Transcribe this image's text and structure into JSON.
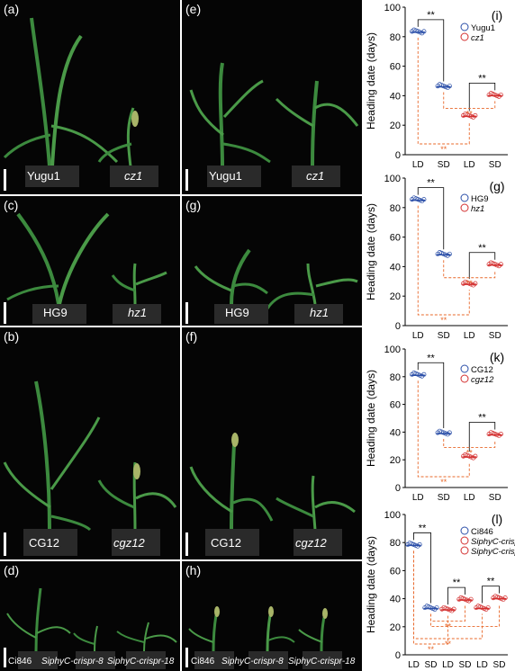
{
  "colors": {
    "wildtype": "#2b4fa8",
    "mutant": "#d32f2f",
    "significance": "#e8682a",
    "photo_bg": "#050505",
    "leaf": "#3c8a3e",
    "pot": "#2a2a2a"
  },
  "photos": [
    {
      "id": "a",
      "label": "(a)",
      "captions": [
        {
          "text": "Yugu1",
          "italic": false
        },
        {
          "text": "cz1",
          "italic": true
        }
      ]
    },
    {
      "id": "e",
      "label": "(e)",
      "captions": [
        {
          "text": "Yugu1",
          "italic": false
        },
        {
          "text": "cz1",
          "italic": true
        }
      ]
    },
    {
      "id": "c",
      "label": "(c)",
      "captions": [
        {
          "text": "HG9",
          "italic": false
        },
        {
          "text": "hz1",
          "italic": true
        }
      ]
    },
    {
      "id": "g",
      "label": "(g)",
      "captions": [
        {
          "text": "HG9",
          "italic": false
        },
        {
          "text": "hz1",
          "italic": true
        }
      ]
    },
    {
      "id": "b",
      "label": "(b)",
      "captions": [
        {
          "text": "CG12",
          "italic": false
        },
        {
          "text": "cgz12",
          "italic": true
        }
      ]
    },
    {
      "id": "f",
      "label": "(f)",
      "captions": [
        {
          "text": "CG12",
          "italic": false
        },
        {
          "text": "cgz12",
          "italic": true
        }
      ]
    },
    {
      "id": "d",
      "label": "(d)",
      "captions": [
        {
          "text": "Ci846",
          "italic": false
        },
        {
          "text": "SiphyC-crispr-8",
          "italic": true
        },
        {
          "text": "SiphyC-crispr-18",
          "italic": true
        }
      ]
    },
    {
      "id": "h",
      "label": "(h)",
      "captions": [
        {
          "text": "Ci846",
          "italic": false
        },
        {
          "text": "SiphyC-crispr-8",
          "italic": true
        },
        {
          "text": "SiphyC-crispr-18",
          "italic": true
        }
      ]
    }
  ],
  "chart_data": [
    {
      "type": "scatter",
      "panel": "(i)",
      "ylabel": "Heading date (days)",
      "ylim": [
        0,
        100
      ],
      "yticks": [
        0,
        20,
        40,
        60,
        80,
        100
      ],
      "categories": [
        "LD",
        "SD",
        "LD",
        "SD"
      ],
      "series": [
        {
          "name": "Yugu1",
          "values": [
            83,
            46
          ]
        },
        {
          "name": "cz1",
          "values": [
            26,
            40
          ]
        }
      ],
      "annotations": [
        "**",
        "**",
        "**",
        "**"
      ]
    },
    {
      "type": "scatter",
      "panel": "(g)",
      "ylabel": "Heading date (days)",
      "ylim": [
        0,
        100
      ],
      "yticks": [
        0,
        20,
        40,
        60,
        80,
        100
      ],
      "categories": [
        "LD",
        "SD",
        "LD",
        "SD"
      ],
      "series": [
        {
          "name": "HG9",
          "values": [
            85,
            48
          ]
        },
        {
          "name": "hz1",
          "values": [
            28,
            41
          ]
        }
      ],
      "annotations": [
        "**",
        "**",
        "**",
        "**"
      ]
    },
    {
      "type": "scatter",
      "panel": "(k)",
      "ylabel": "Heading date (days)",
      "ylim": [
        0,
        100
      ],
      "yticks": [
        0,
        20,
        40,
        60,
        80,
        100
      ],
      "categories": [
        "LD",
        "SD",
        "LD",
        "SD"
      ],
      "series": [
        {
          "name": "CG12",
          "values": [
            81,
            39
          ]
        },
        {
          "name": "cgz12",
          "values": [
            22,
            38
          ]
        }
      ],
      "annotations": [
        "**",
        "**",
        "**",
        "**"
      ]
    },
    {
      "type": "scatter",
      "panel": "(l)",
      "ylabel": "Heading date (days)",
      "ylim": [
        0,
        100
      ],
      "yticks": [
        0,
        20,
        40,
        60,
        80,
        100
      ],
      "categories": [
        "LD",
        "SD",
        "LD",
        "SD",
        "LD",
        "SD"
      ],
      "series": [
        {
          "name": "Ci846",
          "values": [
            78,
            33
          ]
        },
        {
          "name": "SiphyC-crispr-8",
          "values": [
            32,
            39
          ]
        },
        {
          "name": "SiphyC-crispr-18",
          "values": [
            33,
            40
          ]
        }
      ],
      "annotations": [
        "**",
        "**",
        "**",
        "**",
        "**",
        "**"
      ]
    }
  ]
}
